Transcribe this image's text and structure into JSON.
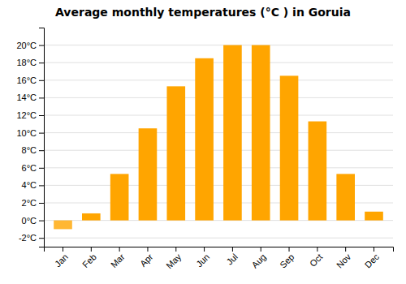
{
  "chart_data": {
    "type": "bar",
    "title": "Average monthly temperatures (°C ) in Goruia",
    "categories": [
      "Jan",
      "Feb",
      "Mar",
      "Apr",
      "May",
      "Jun",
      "Jul",
      "Aug",
      "Sep",
      "Oct",
      "Nov",
      "Dec"
    ],
    "values": [
      -1.0,
      0.8,
      5.3,
      10.5,
      15.3,
      18.5,
      20.0,
      20.0,
      16.5,
      11.3,
      5.3,
      1.0
    ],
    "colors": [
      "#FFB733",
      "#FFA500",
      "#FFA500",
      "#FFA500",
      "#FFA500",
      "#FFA500",
      "#FFA500",
      "#FFA500",
      "#FFA500",
      "#FFA500",
      "#FFA500",
      "#FFA500"
    ],
    "ylim": [
      -3,
      22
    ],
    "yticks": [
      {
        "value": -2,
        "label": "-2°C"
      },
      {
        "value": 0,
        "label": "0°C"
      },
      {
        "value": 2,
        "label": "2°C"
      },
      {
        "value": 4,
        "label": "4°C"
      },
      {
        "value": 6,
        "label": "6°C"
      },
      {
        "value": 8,
        "label": "8°C"
      },
      {
        "value": 10,
        "label": "10°C"
      },
      {
        "value": 12,
        "label": "12°C"
      },
      {
        "value": 14,
        "label": "14°C"
      },
      {
        "value": 16,
        "label": "16°C"
      },
      {
        "value": 18,
        "label": "18°C"
      },
      {
        "value": 20,
        "label": "20°C"
      }
    ],
    "grid": true
  }
}
